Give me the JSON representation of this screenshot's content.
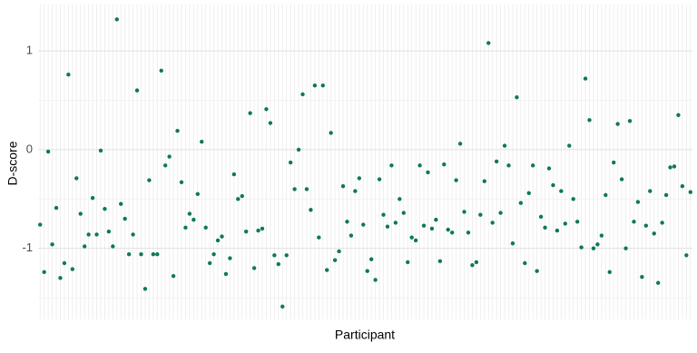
{
  "chart_data": {
    "type": "scatter",
    "y_label": "D-score",
    "x_label": "Participant",
    "categories": [
      null,
      null,
      null,
      null,
      null,
      null,
      null,
      null,
      null,
      null,
      null,
      null,
      null,
      null,
      null,
      null,
      null,
      null,
      null,
      null,
      null,
      null,
      null,
      null,
      null,
      null,
      null,
      null,
      null,
      null,
      null,
      null,
      null,
      null,
      null,
      null,
      null,
      null,
      null,
      null,
      null,
      null,
      null,
      null,
      null,
      null,
      null,
      null,
      null,
      null,
      null,
      null,
      null,
      null,
      null,
      null,
      null,
      null,
      null,
      null,
      null,
      null,
      null,
      null,
      null,
      null,
      null,
      null,
      null,
      null,
      null,
      null,
      null,
      null,
      null,
      null,
      null,
      null,
      null,
      null,
      null,
      null,
      null,
      null,
      null,
      null,
      null,
      null,
      null,
      null,
      null,
      null,
      null,
      null,
      null,
      null,
      null,
      null,
      null,
      null,
      null,
      null,
      null,
      null,
      null,
      null,
      null,
      null,
      null,
      null,
      null,
      null,
      null,
      null,
      null,
      null,
      null,
      null,
      null,
      null,
      null,
      null,
      null,
      null,
      null,
      null,
      null,
      null,
      null,
      null,
      null,
      null,
      null,
      null,
      null,
      null,
      null,
      null,
      null,
      null,
      null,
      null,
      null,
      null,
      null,
      null,
      null,
      null,
      null,
      null,
      null,
      null,
      null,
      null,
      null,
      null,
      null,
      null,
      null,
      null,
      null,
      null
    ],
    "values": [
      -0.76,
      -1.24,
      -0.02,
      -0.96,
      -0.59,
      -1.3,
      -1.15,
      0.76,
      -1.21,
      -0.29,
      -0.65,
      -0.98,
      -0.86,
      -0.49,
      -0.86,
      -0.01,
      -0.6,
      -0.83,
      -0.98,
      1.32,
      -0.55,
      -0.7,
      -1.06,
      -0.86,
      0.6,
      -1.06,
      -1.41,
      -0.31,
      -1.06,
      -1.06,
      0.8,
      -0.16,
      -0.07,
      -1.28,
      0.19,
      -0.33,
      -0.79,
      -0.65,
      -0.71,
      -0.45,
      0.08,
      -0.79,
      -1.15,
      -1.06,
      -0.92,
      -0.88,
      -1.26,
      -1.1,
      -0.25,
      -0.5,
      -0.47,
      -0.83,
      0.37,
      -1.2,
      -0.82,
      -0.8,
      0.41,
      0.27,
      -1.07,
      -1.16,
      -1.59,
      -1.07,
      -0.13,
      -0.4,
      0.0,
      0.56,
      -0.4,
      -0.61,
      0.65,
      -0.89,
      0.65,
      -1.22,
      0.17,
      -1.12,
      -1.03,
      -0.37,
      -0.73,
      -0.87,
      -0.42,
      -0.29,
      -0.76,
      -1.23,
      -1.11,
      -1.32,
      -0.3,
      -0.66,
      -0.78,
      -0.16,
      -0.74,
      -0.5,
      -0.64,
      -1.14,
      -0.89,
      -0.92,
      -0.16,
      -0.77,
      -0.23,
      -0.8,
      -0.71,
      -1.13,
      -0.15,
      -0.81,
      -0.84,
      -0.31,
      0.06,
      -0.63,
      -0.84,
      -1.17,
      -1.14,
      -0.66,
      -0.32,
      1.08,
      -0.74,
      -0.12,
      -0.64,
      0.04,
      -0.16,
      -0.95,
      0.53,
      -0.54,
      -1.15,
      -0.44,
      -0.16,
      -1.23,
      -0.68,
      -0.79,
      -0.19,
      -0.36,
      -0.82,
      -0.42,
      -0.75,
      0.04,
      -0.5,
      -0.73,
      -0.99,
      0.72,
      0.3,
      -1.0,
      -0.96,
      -0.87,
      -0.46,
      -1.24,
      -0.13,
      0.26,
      -0.3,
      -1.0,
      0.29,
      -0.73,
      -0.53,
      -1.29,
      -0.77,
      -0.42,
      -0.85,
      -1.35,
      -0.74,
      -0.46,
      -0.18,
      -0.17,
      0.35,
      -0.37,
      -1.07,
      -0.43
    ],
    "color": "#0f7a4e",
    "ylim": [
      -1.72,
      1.47
    ],
    "yticks": [
      -1,
      0,
      1
    ],
    "minor_yticks": [
      -1.5,
      -0.5,
      0.5
    ],
    "grid": true
  }
}
